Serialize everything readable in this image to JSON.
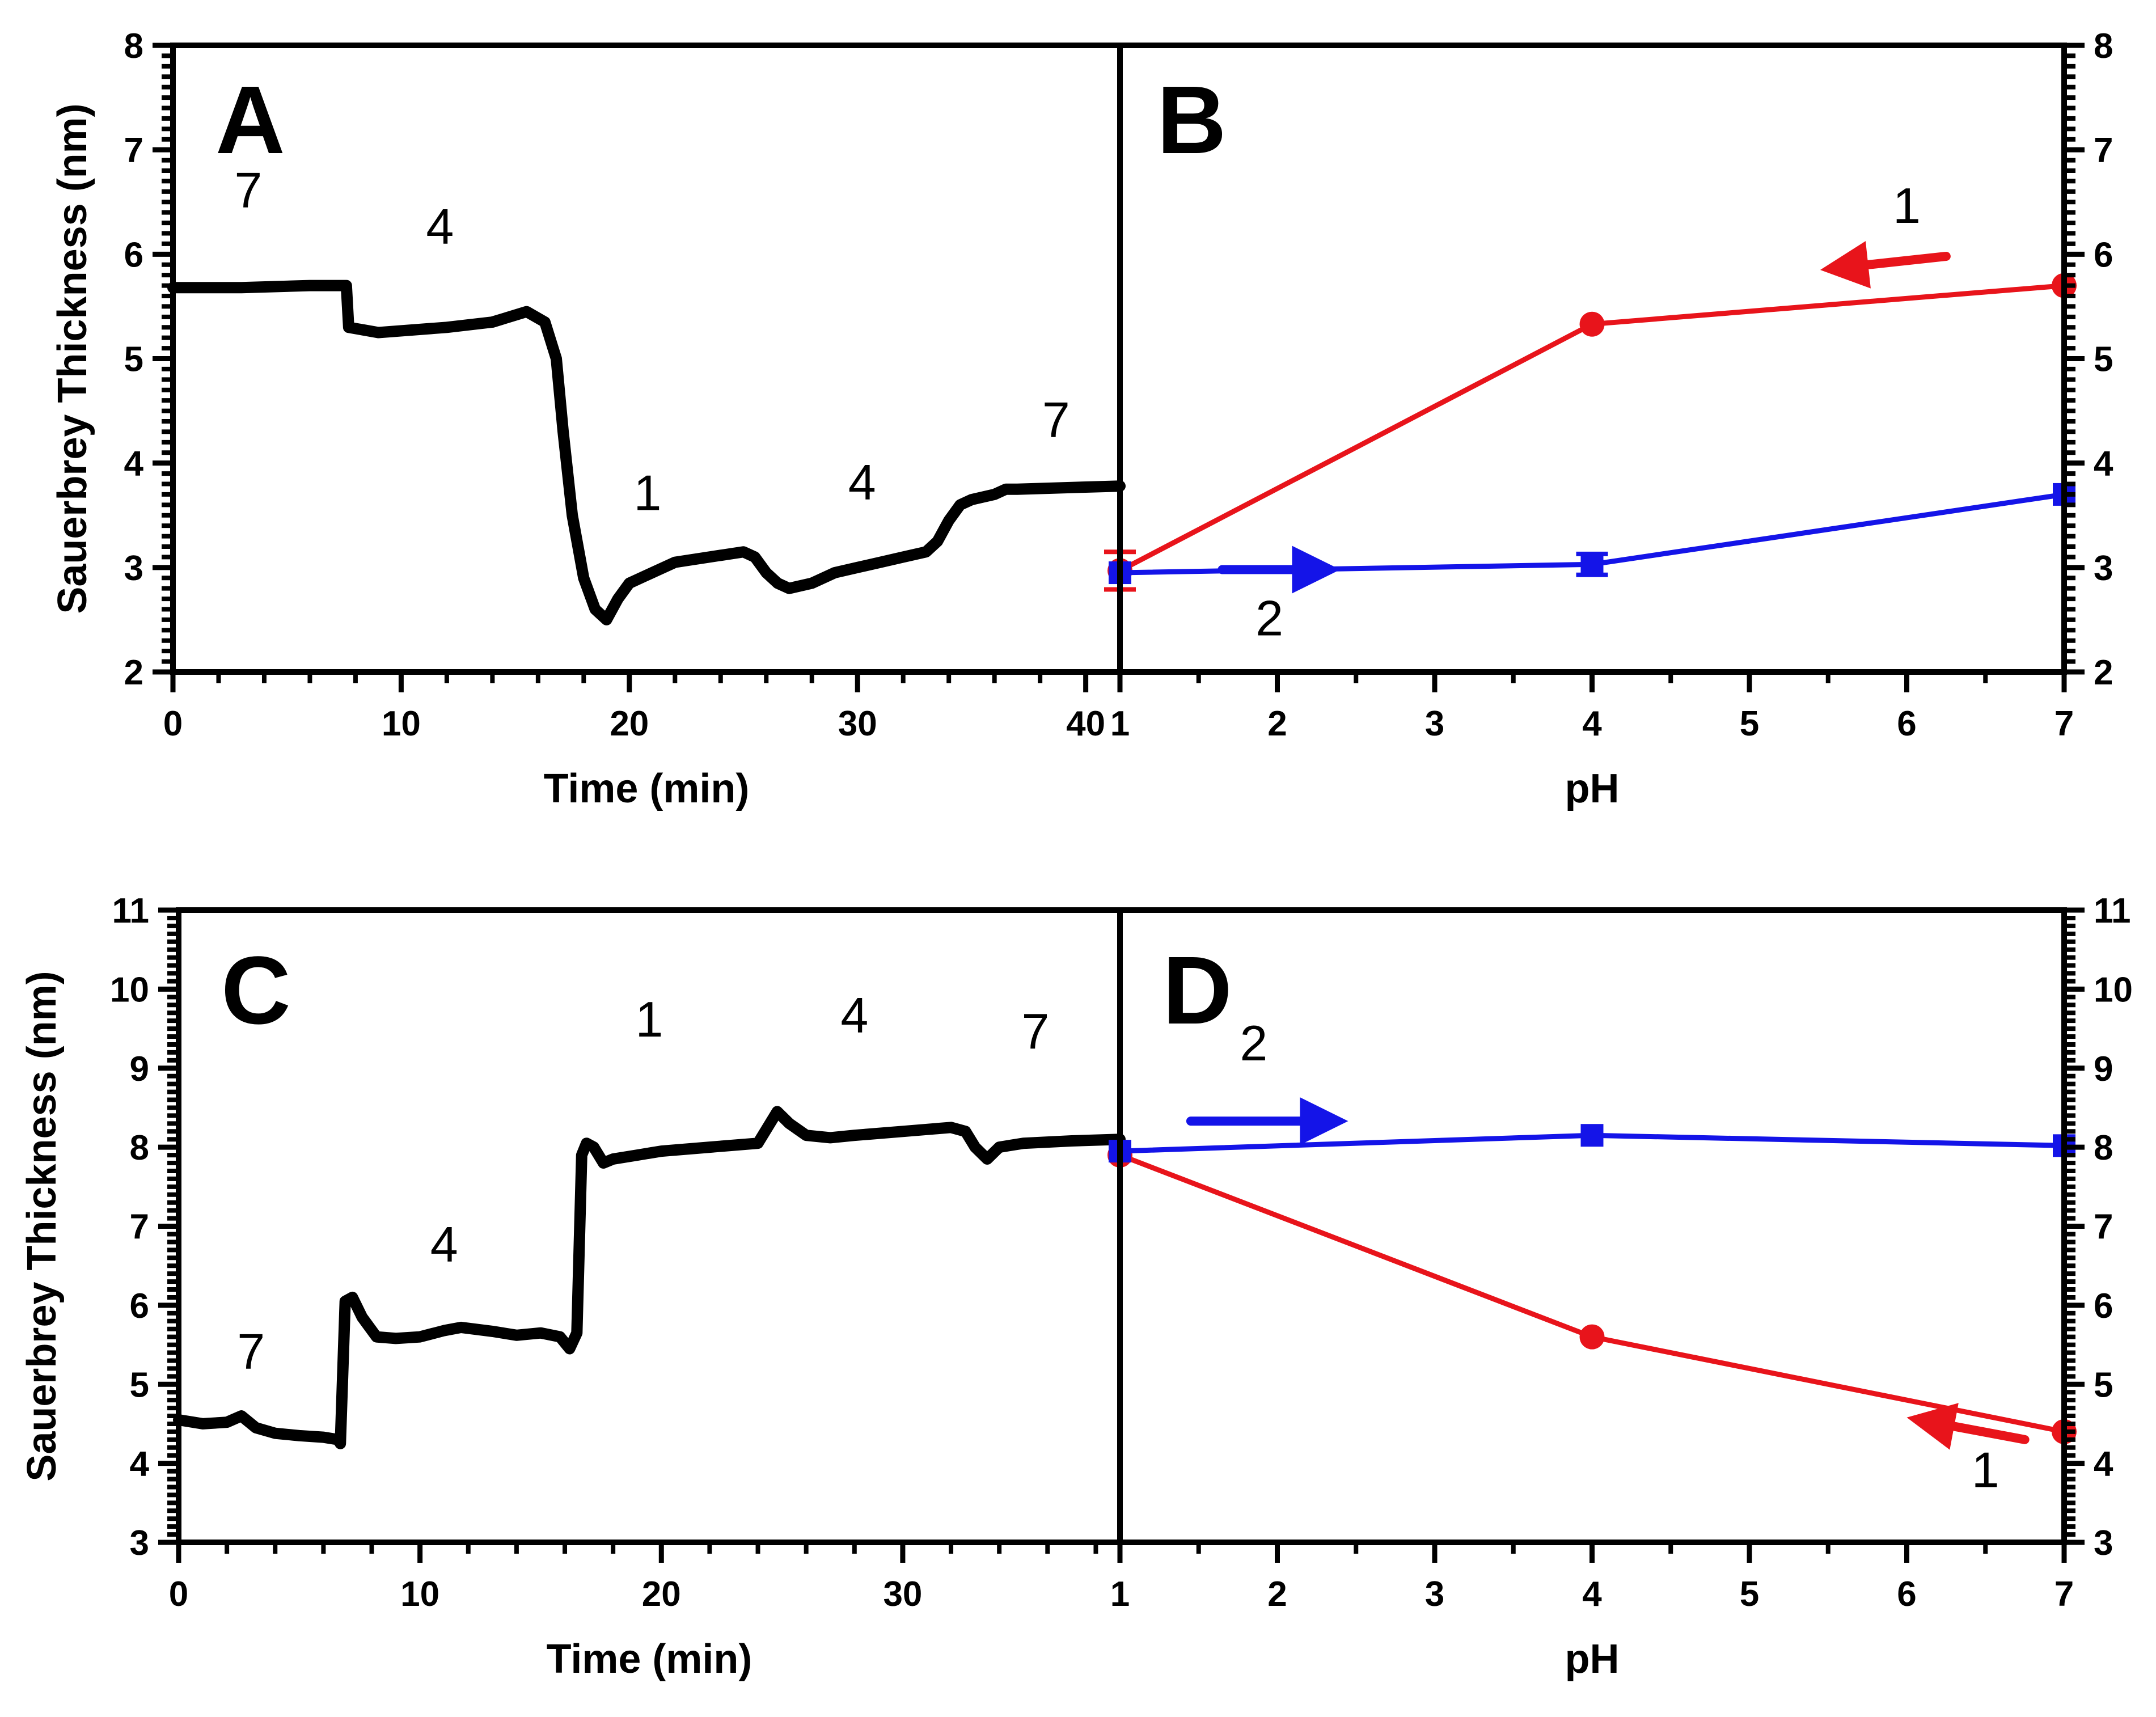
{
  "chart_data": [
    {
      "panel": "A",
      "type": "line",
      "xlabel": "Time (min)",
      "ylabel": "Sauerbrey Thickness (nm)",
      "xlim": [
        0,
        41.5
      ],
      "ylim": [
        2,
        8
      ],
      "xticks": [
        0,
        10,
        20,
        30,
        40
      ],
      "yticks": [
        2,
        3,
        4,
        5,
        6,
        7,
        8
      ],
      "series": [
        {
          "name": "trace",
          "color": "#000000",
          "x": [
            0,
            3,
            6,
            7.6,
            7.7,
            9,
            12,
            14,
            15.5,
            16.3,
            16.8,
            17.1,
            17.5,
            18,
            18.5,
            19,
            19.5,
            20,
            21,
            22,
            23.5,
            25,
            25.5,
            26,
            26.5,
            27,
            28,
            29,
            30,
            31,
            32,
            33,
            33.5,
            34,
            34.5,
            35,
            36,
            36.5,
            37,
            38.5,
            40,
            41.5
          ],
          "y": [
            5.68,
            5.68,
            5.7,
            5.7,
            5.3,
            5.25,
            5.3,
            5.35,
            5.45,
            5.35,
            5.0,
            4.3,
            3.5,
            2.9,
            2.6,
            2.5,
            2.7,
            2.85,
            2.95,
            3.05,
            3.1,
            3.15,
            3.1,
            2.95,
            2.85,
            2.8,
            2.85,
            2.95,
            3.0,
            3.05,
            3.1,
            3.15,
            3.25,
            3.45,
            3.6,
            3.65,
            3.7,
            3.75,
            3.75,
            3.76,
            3.77,
            3.78
          ]
        }
      ],
      "annotations": [
        {
          "text": "7",
          "x": 3.3,
          "y": 6.45
        },
        {
          "text": "4",
          "x": 11.7,
          "y": 6.1
        },
        {
          "text": "1",
          "x": 20.8,
          "y": 3.55
        },
        {
          "text": "4",
          "x": 30.2,
          "y": 3.65
        },
        {
          "text": "7",
          "x": 38.7,
          "y": 4.25
        }
      ]
    },
    {
      "panel": "B",
      "type": "line",
      "xlabel": "pH",
      "xlim": [
        1,
        7
      ],
      "ylim": [
        2,
        8
      ],
      "xticks": [
        1,
        2,
        3,
        4,
        5,
        6,
        7
      ],
      "yticks": [
        2,
        3,
        4,
        5,
        6,
        7,
        8
      ],
      "series": [
        {
          "name": "1",
          "color": "#e8141b",
          "marker": "circle",
          "x": [
            1,
            4,
            7
          ],
          "y": [
            2.97,
            5.33,
            5.7
          ],
          "yerr": [
            0.18,
            0.02,
            0.02
          ]
        },
        {
          "name": "2",
          "color": "#1414e8",
          "marker": "square",
          "x": [
            1,
            4,
            7
          ],
          "y": [
            2.95,
            3.03,
            3.7
          ],
          "yerr": [
            0.02,
            0.1,
            0.02
          ]
        }
      ],
      "annotations": [
        {
          "text": "1",
          "x": 6.0,
          "y": 6.3,
          "color": "#000000"
        },
        {
          "text": "2",
          "x": 1.95,
          "y": 2.35,
          "color": "#000000"
        }
      ],
      "arrows": [
        {
          "series": "1",
          "color": "#e8141b",
          "from": [
            6.25,
            5.98
          ],
          "to": [
            5.45,
            5.85
          ]
        },
        {
          "series": "2",
          "color": "#1414e8",
          "from": [
            1.65,
            2.98
          ],
          "to": [
            2.4,
            2.98
          ]
        }
      ]
    },
    {
      "panel": "C",
      "type": "line",
      "xlabel": "Time (min)",
      "ylabel": "Sauerbrey Thickness (nm)",
      "xlim": [
        0,
        39
      ],
      "ylim": [
        3,
        11
      ],
      "xticks": [
        0,
        10,
        20,
        30
      ],
      "yticks": [
        3,
        4,
        5,
        6,
        7,
        8,
        9,
        10,
        11
      ],
      "series": [
        {
          "name": "trace",
          "color": "#000000",
          "x": [
            0,
            1,
            2,
            2.6,
            3.2,
            4,
            5,
            6,
            6.6,
            6.7,
            6.9,
            7.2,
            7.6,
            8.2,
            9,
            10,
            11,
            11.7,
            13,
            14,
            15,
            15.8,
            16.2,
            16.5,
            16.7,
            16.9,
            17.2,
            17.6,
            18,
            19,
            20,
            22,
            24,
            24.5,
            24.8,
            25.3,
            26,
            27,
            28,
            30,
            32,
            32.6,
            33,
            33.5,
            34,
            35,
            37,
            39
          ],
          "y": [
            4.55,
            4.5,
            4.52,
            4.6,
            4.45,
            4.38,
            4.35,
            4.33,
            4.3,
            4.25,
            6.05,
            6.1,
            5.85,
            5.6,
            5.58,
            5.6,
            5.68,
            5.72,
            5.67,
            5.62,
            5.65,
            5.6,
            5.45,
            5.65,
            7.9,
            8.05,
            8.0,
            7.8,
            7.85,
            7.9,
            7.95,
            8.0,
            8.05,
            8.3,
            8.45,
            8.3,
            8.15,
            8.12,
            8.15,
            8.2,
            8.25,
            8.2,
            8.0,
            7.85,
            8.0,
            8.05,
            8.08,
            8.1
          ]
        }
      ],
      "annotations": [
        {
          "text": "7",
          "x": 3.0,
          "y": 5.2
        },
        {
          "text": "4",
          "x": 11.0,
          "y": 6.55
        },
        {
          "text": "1",
          "x": 19.5,
          "y": 9.4
        },
        {
          "text": "4",
          "x": 28.0,
          "y": 9.45
        },
        {
          "text": "7",
          "x": 35.5,
          "y": 9.25
        }
      ]
    },
    {
      "panel": "D",
      "type": "line",
      "xlabel": "pH",
      "xlim": [
        1,
        7
      ],
      "ylim": [
        3,
        11
      ],
      "xticks": [
        1,
        2,
        3,
        4,
        5,
        6,
        7
      ],
      "yticks": [
        3,
        4,
        5,
        6,
        7,
        8,
        9,
        10,
        11
      ],
      "series": [
        {
          "name": "1",
          "color": "#e8141b",
          "marker": "circle",
          "x": [
            1,
            4,
            7
          ],
          "y": [
            7.9,
            5.6,
            4.4
          ]
        },
        {
          "name": "2",
          "color": "#1414e8",
          "marker": "square",
          "x": [
            1,
            4,
            7
          ],
          "y": [
            7.95,
            8.15,
            8.02
          ]
        }
      ],
      "annotations": [
        {
          "text": "2",
          "x": 1.85,
          "y": 9.1,
          "color": "#000000"
        },
        {
          "text": "1",
          "x": 6.5,
          "y": 3.7,
          "color": "#000000"
        }
      ],
      "arrows": [
        {
          "series": "1",
          "color": "#e8141b",
          "from": [
            6.75,
            4.3
          ],
          "to": [
            6.0,
            4.58
          ]
        },
        {
          "series": "2",
          "color": "#1414e8",
          "from": [
            1.45,
            8.33
          ],
          "to": [
            2.45,
            8.33
          ]
        }
      ]
    }
  ]
}
